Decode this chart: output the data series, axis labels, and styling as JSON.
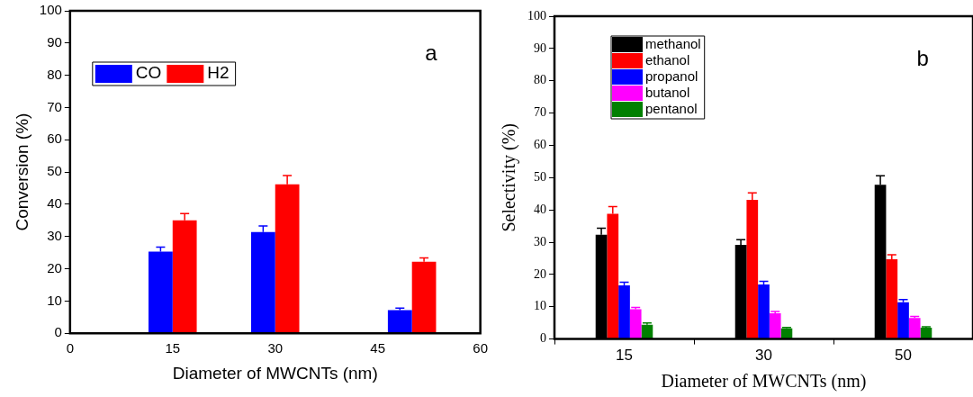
{
  "chart_data": [
    {
      "type": "bar",
      "x": [
        15,
        30,
        50
      ],
      "xlim": [
        0,
        60
      ],
      "xticks": [
        0,
        15,
        30,
        45,
        60
      ],
      "ylim": [
        0,
        100
      ],
      "yticks": [
        0,
        10,
        20,
        30,
        40,
        50,
        60,
        70,
        80,
        90,
        100
      ],
      "xlabel": "Diameter of MWCNTs (nm)",
      "ylabel": "Conversion (%)",
      "legend": "top left",
      "annotations": [
        "a"
      ],
      "series": [
        {
          "name": "CO",
          "color": "#0000ff",
          "values": [
            25.3,
            31.4,
            7.2
          ],
          "errors": [
            [
              25.3,
              26.7
            ],
            [
              31.4,
              33.3
            ],
            [
              7.2,
              7.8
            ]
          ]
        },
        {
          "name": "H2",
          "color": "#ff0000",
          "values": [
            35.0,
            46.2,
            22.2
          ],
          "errors": [
            [
              35.0,
              37.1
            ],
            [
              46.2,
              48.9
            ],
            [
              22.2,
              23.4
            ]
          ]
        }
      ]
    },
    {
      "type": "bar",
      "categories": [
        "15",
        "30",
        "50"
      ],
      "ylim": [
        0,
        100
      ],
      "yticks": [
        0,
        10,
        20,
        30,
        40,
        50,
        60,
        70,
        80,
        90,
        100
      ],
      "xlabel": "Diameter of MWCNTs (nm)",
      "ylabel": "Selectivity (%)",
      "legend": "top left",
      "annotations": [
        "b"
      ],
      "series": [
        {
          "name": "methanol",
          "color": "#000000",
          "values": [
            32.3,
            29.2,
            47.8
          ],
          "errors": [
            [
              32.3,
              34.3
            ],
            [
              29.2,
              30.8
            ],
            [
              47.8,
              50.6
            ]
          ]
        },
        {
          "name": "ethanol",
          "color": "#ff0000",
          "values": [
            38.8,
            43.1,
            24.7
          ],
          "errors": [
            [
              38.8,
              41.0
            ],
            [
              43.1,
              45.3
            ],
            [
              24.7,
              26.1
            ]
          ]
        },
        {
          "name": "propanol",
          "color": "#0000ff",
          "values": [
            16.6,
            16.9,
            11.4
          ],
          "errors": [
            [
              16.6,
              17.6
            ],
            [
              16.9,
              17.9
            ],
            [
              11.4,
              12.2
            ]
          ]
        },
        {
          "name": "butanol",
          "color": "#ff00ff",
          "values": [
            9.2,
            8.0,
            6.5
          ],
          "errors": [
            [
              9.2,
              9.8
            ],
            [
              8.0,
              8.5
            ],
            [
              6.5,
              7.0
            ]
          ]
        },
        {
          "name": "pentanol",
          "color": "#008000",
          "values": [
            4.4,
            3.3,
            3.5
          ],
          "errors": [
            [
              4.4,
              5.0
            ],
            [
              3.3,
              3.6
            ],
            [
              3.5,
              3.8
            ]
          ]
        }
      ]
    }
  ]
}
